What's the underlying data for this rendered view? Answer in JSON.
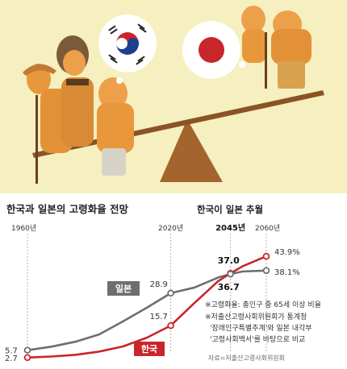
{
  "colors": {
    "korea": "#c8262b",
    "japan": "#6e6e6e",
    "illustration_bg": "#f6efbf",
    "figure": "#e8983a"
  },
  "illustration": {
    "korea_flag_icon": "taegukgi-flag-icon",
    "japan_flag_icon": "hinomaru-flag-icon"
  },
  "chart_data": {
    "type": "line",
    "title": "한국과 일본의 고령화율 전망",
    "subtitle": "한국이 일본 추월",
    "x": [
      1960,
      1970,
      1980,
      1990,
      2000,
      2010,
      2020,
      2030,
      2040,
      2045,
      2050,
      2060
    ],
    "series": [
      {
        "name": "일본",
        "color": "#6e6e6e",
        "values": [
          5.7,
          7.1,
          9.1,
          12.1,
          17.4,
          23.0,
          28.9,
          31.2,
          35.3,
          36.7,
          37.7,
          38.1
        ]
      },
      {
        "name": "한국",
        "color": "#c8262b",
        "values": [
          2.7,
          3.1,
          3.8,
          5.1,
          7.2,
          10.8,
          15.7,
          25.0,
          33.9,
          37.0,
          39.8,
          43.9
        ]
      }
    ],
    "year_labels": [
      {
        "x": 1960,
        "label": "1960년",
        "bold": false
      },
      {
        "x": 2020,
        "label": "2020년",
        "bold": false
      },
      {
        "x": 2045,
        "label": "2045년",
        "bold": true
      },
      {
        "x": 2060,
        "label": "2060년",
        "bold": false
      }
    ],
    "data_labels": [
      {
        "series": "일본",
        "x": 1960,
        "label": "5.7"
      },
      {
        "series": "한국",
        "x": 1960,
        "label": "2.7"
      },
      {
        "series": "일본",
        "x": 2020,
        "label": "28.9"
      },
      {
        "series": "한국",
        "x": 2020,
        "label": "15.7"
      },
      {
        "series": "한국",
        "x": 2045,
        "label": "37.0"
      },
      {
        "series": "일본",
        "x": 2045,
        "label": "36.7"
      },
      {
        "series": "한국",
        "x": 2060,
        "label": "43.9%"
      },
      {
        "series": "일본",
        "x": 2060,
        "label": "38.1%"
      }
    ],
    "xlim": [
      1960,
      2060
    ],
    "ylim": [
      0,
      45
    ],
    "grid": false,
    "legend": "inline-labels"
  },
  "notes": [
    "※고령화율: 총인구 중 65세 이상 비율",
    "※저출산고령사회위원회가 통계청",
    "'장래인구특별추계'와 일본 내각부",
    "'고령사회백서'를 바탕으로 비교"
  ],
  "source": "자료=저출산고령사회위원회"
}
